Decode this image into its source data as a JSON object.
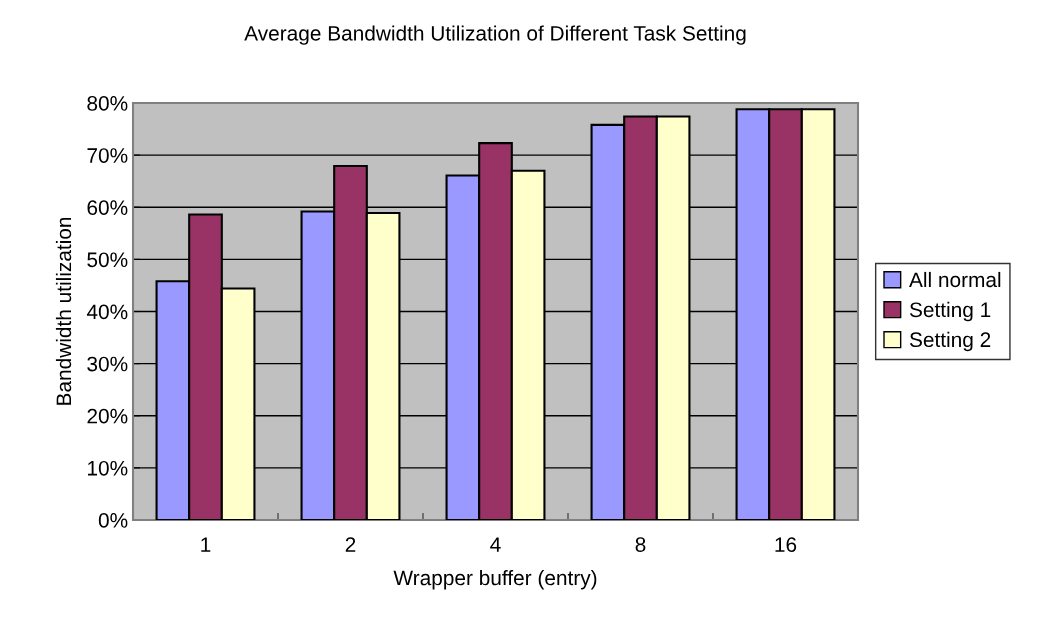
{
  "chart_data": {
    "type": "bar",
    "title": "Average Bandwidth Utilization of Different Task Setting",
    "xlabel": "Wrapper buffer (entry)",
    "ylabel": "Bandwidth utilization",
    "categories": [
      "1",
      "2",
      "4",
      "8",
      "16"
    ],
    "series": [
      {
        "name": "All normal",
        "color": "#9999ff",
        "values": [
          45.8,
          59.2,
          66.1,
          75.8,
          78.8
        ]
      },
      {
        "name": "Setting 1",
        "color": "#993366",
        "values": [
          58.6,
          67.9,
          72.3,
          77.4,
          78.8
        ]
      },
      {
        "name": "Setting 2",
        "color": "#ffffcc",
        "values": [
          44.4,
          58.9,
          67.0,
          77.4,
          78.8
        ]
      }
    ],
    "ylim": [
      0,
      80
    ],
    "yticks": [
      {
        "value": 0,
        "label": "0%"
      },
      {
        "value": 10,
        "label": "10%"
      },
      {
        "value": 20,
        "label": "20%"
      },
      {
        "value": 30,
        "label": "30%"
      },
      {
        "value": 40,
        "label": "40%"
      },
      {
        "value": 50,
        "label": "50%"
      },
      {
        "value": 60,
        "label": "60%"
      },
      {
        "value": 70,
        "label": "70%"
      },
      {
        "value": 80,
        "label": "80%"
      }
    ],
    "grid": "y",
    "legend": "right"
  }
}
